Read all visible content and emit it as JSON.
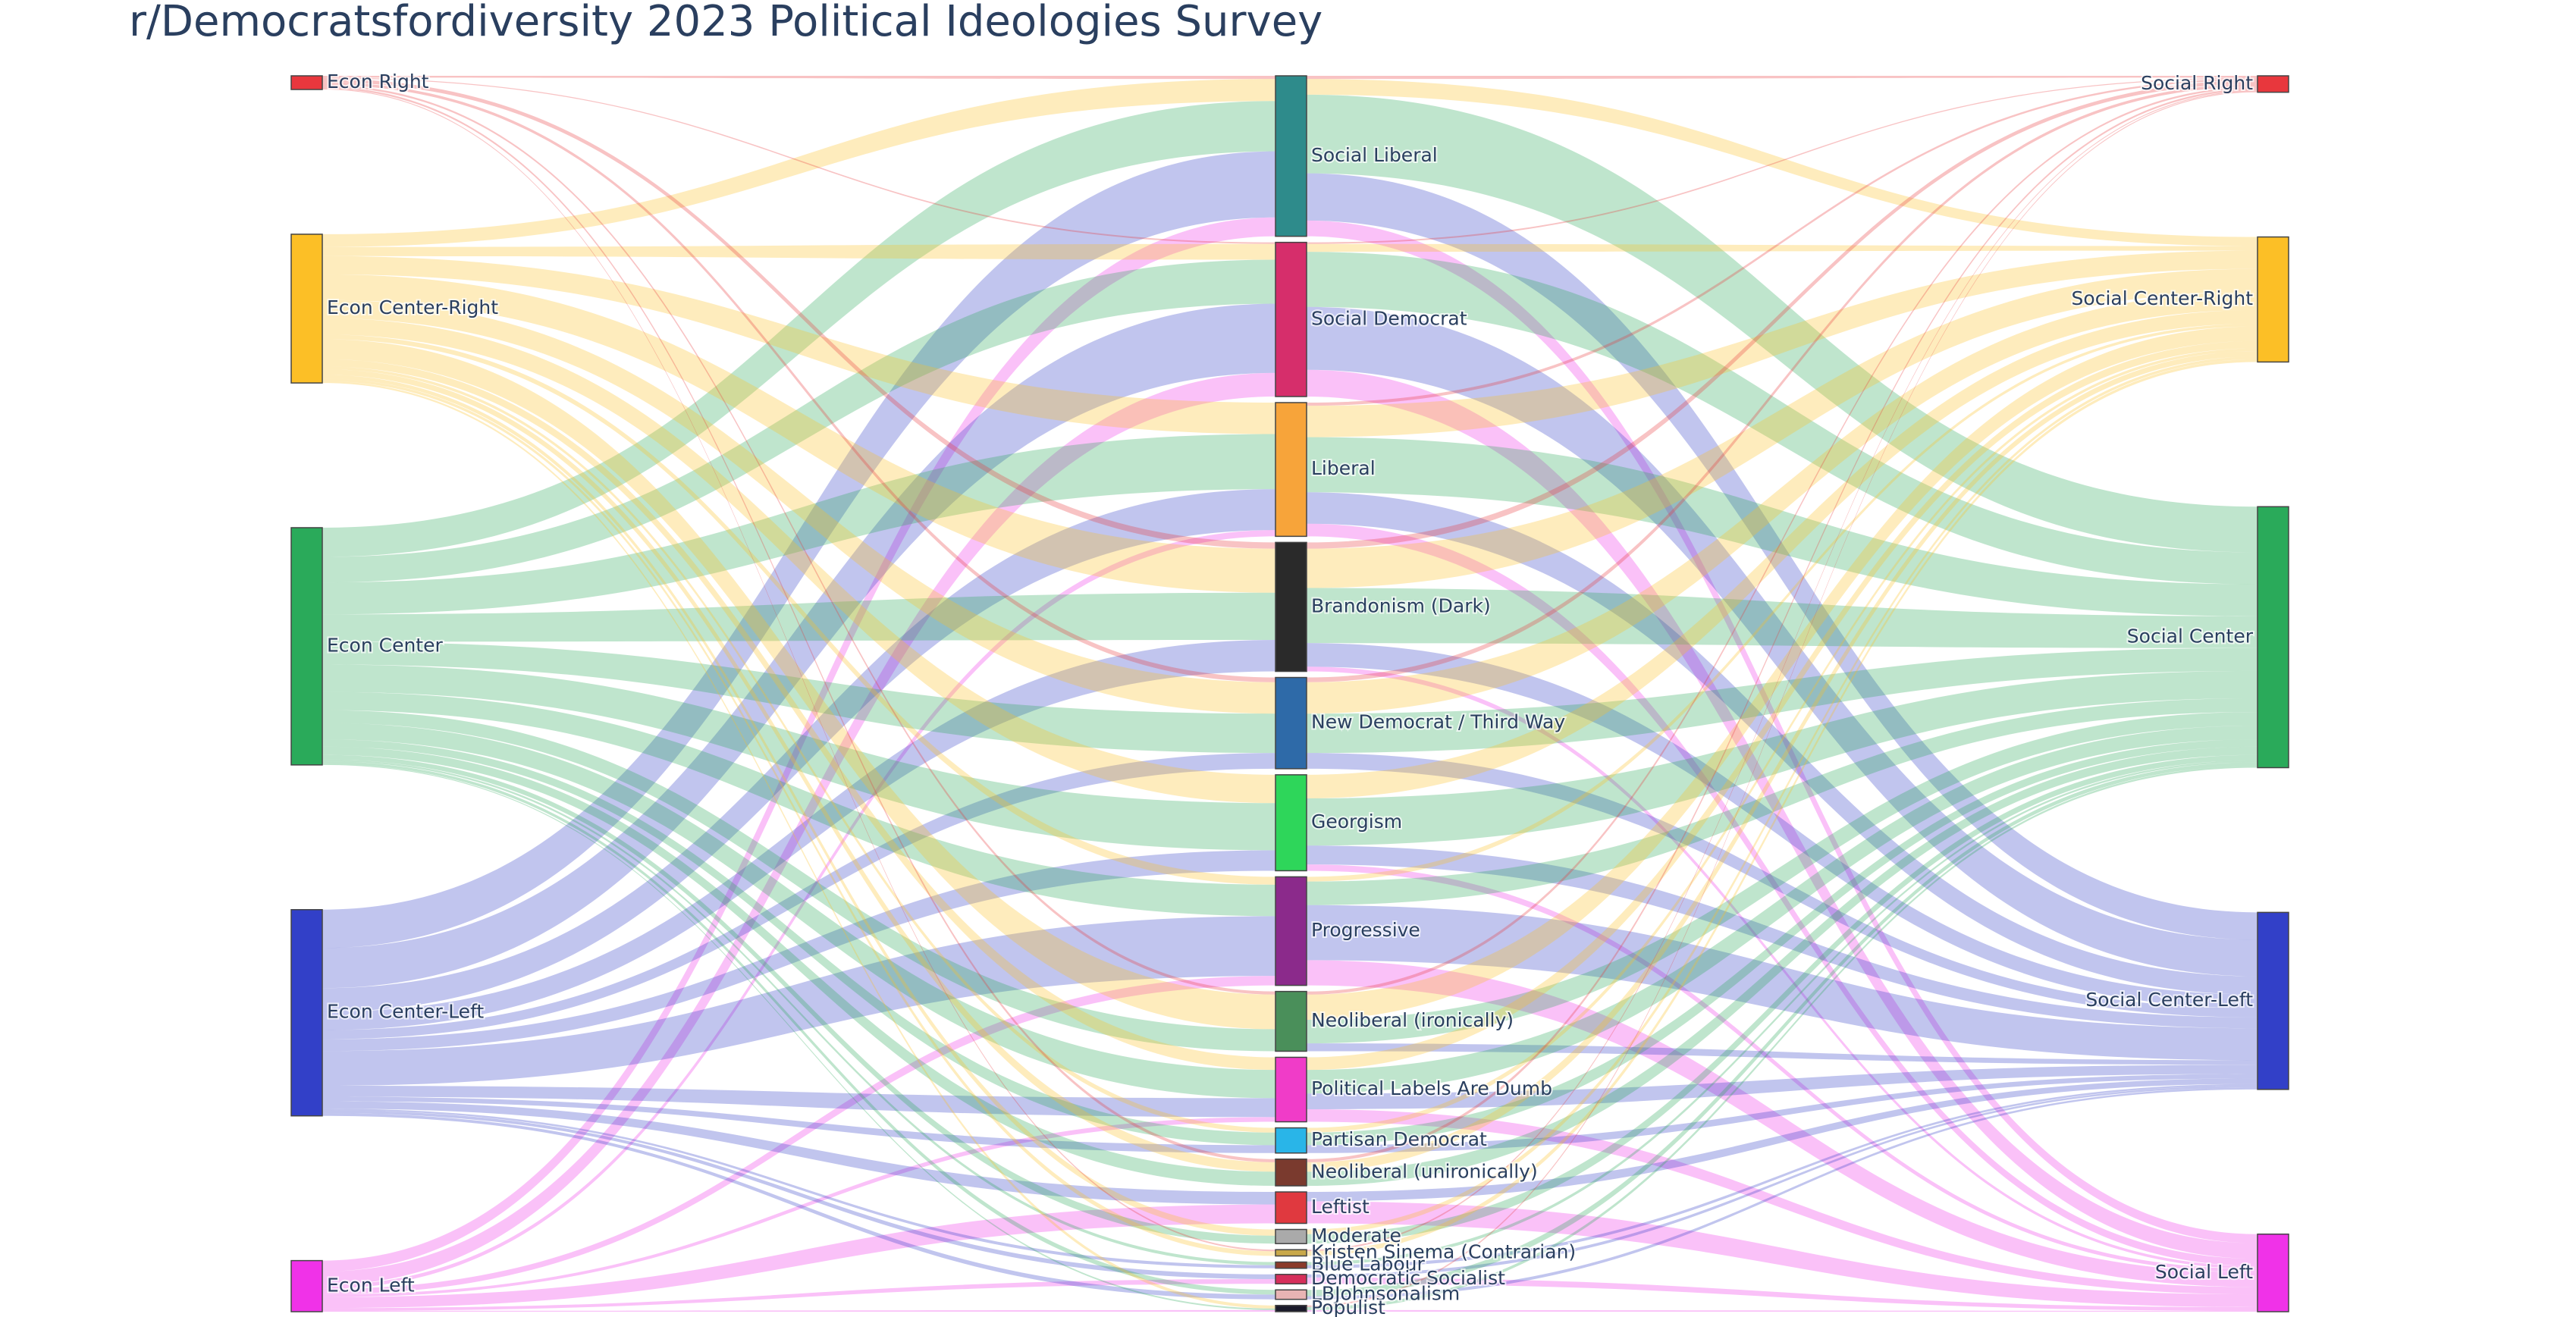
{
  "chart_data": {
    "type": "sankey",
    "title": "r/Democratsfordiversity 2023 Political Ideologies Survey",
    "link_opacity": 0.3,
    "nodes": [
      {
        "label": "Econ Right",
        "color": "#e8373d"
      },
      {
        "label": "Econ Center-Right",
        "color": "#fcbf26"
      },
      {
        "label": "Econ Center",
        "color": "#2aaa5a"
      },
      {
        "label": "Econ Center-Left",
        "color": "#3240c8"
      },
      {
        "label": "Econ Left",
        "color": "#f032e8"
      },
      {
        "label": "Social Liberal",
        "color": "#2e8b8b"
      },
      {
        "label": "Social Democrat",
        "color": "#d62e6b"
      },
      {
        "label": "Liberal",
        "color": "#f7a43a"
      },
      {
        "label": "Brandonism (Dark)",
        "color": "#2a2a2a"
      },
      {
        "label": "New Democrat / Third Way",
        "color": "#2e6aa8"
      },
      {
        "label": "Georgism",
        "color": "#2ed65a"
      },
      {
        "label": "Progressive",
        "color": "#8b2a8b"
      },
      {
        "label": "Neoliberal (ironically)",
        "color": "#4a8f5a"
      },
      {
        "label": "Political Labels Are Dumb",
        "color": "#f03cc8"
      },
      {
        "label": "Partisan Democrat",
        "color": "#29b5e8"
      },
      {
        "label": "Neoliberal (unironically)",
        "color": "#7a3a2e"
      },
      {
        "label": "Leftist",
        "color": "#e0393f"
      },
      {
        "label": "Moderate",
        "color": "#aaaaaa"
      },
      {
        "label": "Kristen Sinema (Contrarian)",
        "color": "#c8a84a"
      },
      {
        "label": "Blue Labour",
        "color": "#8b3a2a"
      },
      {
        "label": "Democratic Socialist",
        "color": "#d62e5a"
      },
      {
        "label": "LBJohnsonalism",
        "color": "#e8b4b4"
      },
      {
        "label": "Populist",
        "color": "#1a1a2a"
      },
      {
        "label": "Social Right",
        "color": "#e8373d"
      },
      {
        "label": "Social Center-Right",
        "color": "#fcbf26"
      },
      {
        "label": "Social Center",
        "color": "#2aaa5a"
      },
      {
        "label": "Social Center-Left",
        "color": "#3240c8"
      },
      {
        "label": "Social Left",
        "color": "#f032e8"
      }
    ],
    "links": [
      {
        "source": 0,
        "target": 5,
        "value": 2
      },
      {
        "source": 1,
        "target": 5,
        "value": 14
      },
      {
        "source": 2,
        "target": 5,
        "value": 32
      },
      {
        "source": 3,
        "target": 5,
        "value": 42
      },
      {
        "source": 4,
        "target": 5,
        "value": 12
      },
      {
        "source": 0,
        "target": 6,
        "value": 1
      },
      {
        "source": 1,
        "target": 6,
        "value": 10
      },
      {
        "source": 2,
        "target": 6,
        "value": 28
      },
      {
        "source": 3,
        "target": 6,
        "value": 44
      },
      {
        "source": 4,
        "target": 6,
        "value": 15
      },
      {
        "source": 1,
        "target": 7,
        "value": 20
      },
      {
        "source": 2,
        "target": 7,
        "value": 35
      },
      {
        "source": 3,
        "target": 7,
        "value": 26
      },
      {
        "source": 4,
        "target": 7,
        "value": 4
      },
      {
        "source": 0,
        "target": 8,
        "value": 4
      },
      {
        "source": 1,
        "target": 8,
        "value": 28
      },
      {
        "source": 2,
        "target": 8,
        "value": 30
      },
      {
        "source": 3,
        "target": 8,
        "value": 20
      },
      {
        "source": 0,
        "target": 9,
        "value": 3
      },
      {
        "source": 1,
        "target": 9,
        "value": 20
      },
      {
        "source": 2,
        "target": 9,
        "value": 25
      },
      {
        "source": 3,
        "target": 9,
        "value": 10
      },
      {
        "source": 1,
        "target": 10,
        "value": 18
      },
      {
        "source": 2,
        "target": 10,
        "value": 30
      },
      {
        "source": 3,
        "target": 10,
        "value": 13
      },
      {
        "source": 1,
        "target": 11,
        "value": 5
      },
      {
        "source": 2,
        "target": 11,
        "value": 20
      },
      {
        "source": 3,
        "target": 11,
        "value": 38
      },
      {
        "source": 4,
        "target": 11,
        "value": 6
      },
      {
        "source": 0,
        "target": 12,
        "value": 2
      },
      {
        "source": 1,
        "target": 12,
        "value": 22
      },
      {
        "source": 2,
        "target": 12,
        "value": 14
      },
      {
        "source": 1,
        "target": 13,
        "value": 8
      },
      {
        "source": 2,
        "target": 13,
        "value": 18
      },
      {
        "source": 3,
        "target": 13,
        "value": 12
      },
      {
        "source": 4,
        "target": 13,
        "value": 3
      },
      {
        "source": 1,
        "target": 14,
        "value": 3
      },
      {
        "source": 2,
        "target": 14,
        "value": 8
      },
      {
        "source": 3,
        "target": 14,
        "value": 5
      },
      {
        "source": 0,
        "target": 15,
        "value": 2
      },
      {
        "source": 1,
        "target": 15,
        "value": 6
      },
      {
        "source": 2,
        "target": 15,
        "value": 9
      },
      {
        "source": 3,
        "target": 16,
        "value": 8
      },
      {
        "source": 4,
        "target": 16,
        "value": 12
      },
      {
        "source": 1,
        "target": 17,
        "value": 4
      },
      {
        "source": 2,
        "target": 17,
        "value": 5
      },
      {
        "source": 0,
        "target": 18,
        "value": 1
      },
      {
        "source": 1,
        "target": 18,
        "value": 3
      },
      {
        "source": 2,
        "target": 19,
        "value": 2
      },
      {
        "source": 3,
        "target": 19,
        "value": 2
      },
      {
        "source": 3,
        "target": 20,
        "value": 3
      },
      {
        "source": 4,
        "target": 20,
        "value": 3
      },
      {
        "source": 2,
        "target": 21,
        "value": 3
      },
      {
        "source": 3,
        "target": 21,
        "value": 3
      },
      {
        "source": 1,
        "target": 22,
        "value": 2
      },
      {
        "source": 2,
        "target": 22,
        "value": 1
      },
      {
        "source": 4,
        "target": 22,
        "value": 1
      },
      {
        "source": 5,
        "target": 23,
        "value": 2
      },
      {
        "source": 5,
        "target": 24,
        "value": 10
      },
      {
        "source": 5,
        "target": 25,
        "value": 50
      },
      {
        "source": 5,
        "target": 26,
        "value": 30
      },
      {
        "source": 5,
        "target": 27,
        "value": 10
      },
      {
        "source": 6,
        "target": 23,
        "value": 1
      },
      {
        "source": 6,
        "target": 24,
        "value": 5
      },
      {
        "source": 6,
        "target": 25,
        "value": 35
      },
      {
        "source": 6,
        "target": 26,
        "value": 40
      },
      {
        "source": 6,
        "target": 27,
        "value": 17
      },
      {
        "source": 7,
        "target": 23,
        "value": 2
      },
      {
        "source": 7,
        "target": 24,
        "value": 20
      },
      {
        "source": 7,
        "target": 25,
        "value": 35
      },
      {
        "source": 7,
        "target": 26,
        "value": 20
      },
      {
        "source": 7,
        "target": 27,
        "value": 8
      },
      {
        "source": 8,
        "target": 23,
        "value": 4
      },
      {
        "source": 8,
        "target": 24,
        "value": 25
      },
      {
        "source": 8,
        "target": 25,
        "value": 35
      },
      {
        "source": 8,
        "target": 26,
        "value": 15
      },
      {
        "source": 8,
        "target": 27,
        "value": 3
      },
      {
        "source": 9,
        "target": 23,
        "value": 3
      },
      {
        "source": 9,
        "target": 24,
        "value": 20
      },
      {
        "source": 9,
        "target": 25,
        "value": 25
      },
      {
        "source": 9,
        "target": 26,
        "value": 10
      },
      {
        "source": 10,
        "target": 24,
        "value": 15
      },
      {
        "source": 10,
        "target": 25,
        "value": 30
      },
      {
        "source": 10,
        "target": 26,
        "value": 12
      },
      {
        "source": 10,
        "target": 27,
        "value": 4
      },
      {
        "source": 11,
        "target": 24,
        "value": 3
      },
      {
        "source": 11,
        "target": 25,
        "value": 15
      },
      {
        "source": 11,
        "target": 26,
        "value": 35
      },
      {
        "source": 11,
        "target": 27,
        "value": 16
      },
      {
        "source": 12,
        "target": 23,
        "value": 2
      },
      {
        "source": 12,
        "target": 24,
        "value": 16
      },
      {
        "source": 12,
        "target": 25,
        "value": 15
      },
      {
        "source": 12,
        "target": 26,
        "value": 5
      },
      {
        "source": 13,
        "target": 24,
        "value": 8
      },
      {
        "source": 13,
        "target": 25,
        "value": 15
      },
      {
        "source": 13,
        "target": 26,
        "value": 10
      },
      {
        "source": 13,
        "target": 27,
        "value": 8
      },
      {
        "source": 14,
        "target": 24,
        "value": 3
      },
      {
        "source": 14,
        "target": 25,
        "value": 8
      },
      {
        "source": 14,
        "target": 26,
        "value": 5
      },
      {
        "source": 15,
        "target": 23,
        "value": 2
      },
      {
        "source": 15,
        "target": 24,
        "value": 6
      },
      {
        "source": 15,
        "target": 25,
        "value": 9
      },
      {
        "source": 16,
        "target": 26,
        "value": 6
      },
      {
        "source": 16,
        "target": 27,
        "value": 14
      },
      {
        "source": 17,
        "target": 24,
        "value": 3
      },
      {
        "source": 17,
        "target": 25,
        "value": 6
      },
      {
        "source": 18,
        "target": 23,
        "value": 1
      },
      {
        "source": 18,
        "target": 24,
        "value": 3
      },
      {
        "source": 19,
        "target": 25,
        "value": 2
      },
      {
        "source": 19,
        "target": 26,
        "value": 2
      },
      {
        "source": 20,
        "target": 26,
        "value": 2
      },
      {
        "source": 20,
        "target": 27,
        "value": 4
      },
      {
        "source": 21,
        "target": 25,
        "value": 4
      },
      {
        "source": 21,
        "target": 26,
        "value": 2
      },
      {
        "source": 22,
        "target": 23,
        "value": 1
      },
      {
        "source": 22,
        "target": 25,
        "value": 2
      },
      {
        "source": 22,
        "target": 27,
        "value": 1
      }
    ]
  }
}
